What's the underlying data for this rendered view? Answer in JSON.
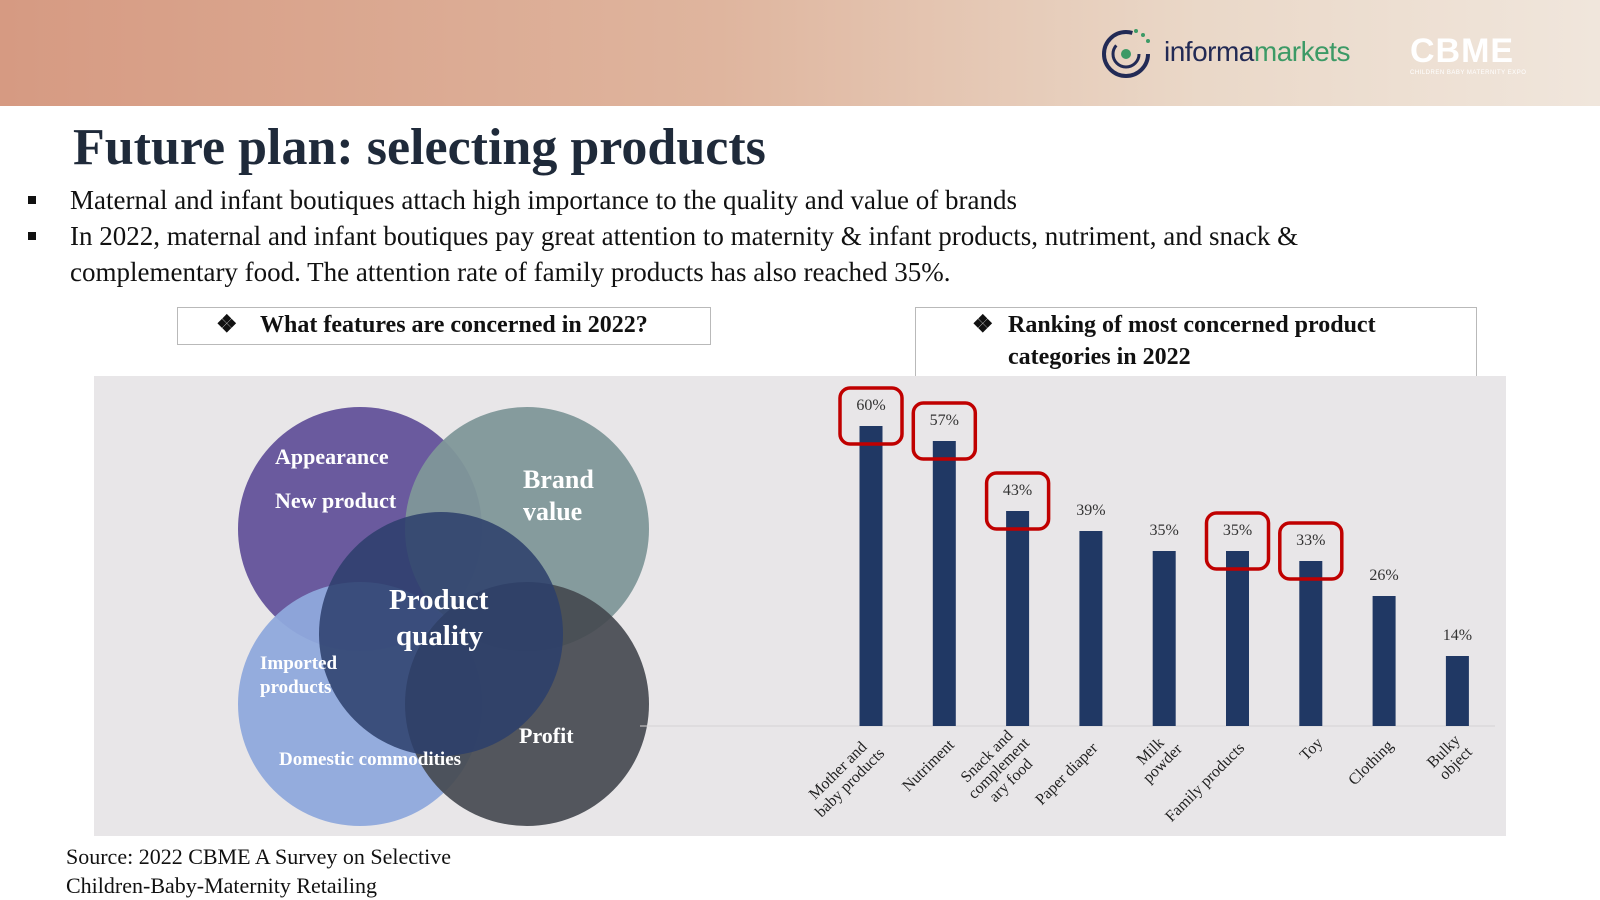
{
  "header": {
    "brand_primary": "informa",
    "brand_secondary": "markets",
    "event_logo": "CBME",
    "event_logo_sub": "CHILDREN BABY MATERNITY EXPO"
  },
  "title": "Future plan: selecting products",
  "bullets": [
    "Maternal and infant boutiques attach high importance to the quality and value of brands",
    "In 2022, maternal and infant boutiques pay great attention to maternity & infant products, nutriment, and snack & complementary food. The attention rate of family products has also reached 35%."
  ],
  "left_box_title": "What features are concerned in 2022?",
  "right_box_title_line1": "Ranking of most concerned product",
  "right_box_title_line2": "categories in 2022",
  "venn": {
    "appearance": "Appearance",
    "new_product": "New product",
    "brand_value_1": "Brand",
    "brand_value_2": "value",
    "product_quality_1": "Product",
    "product_quality_2": "quality",
    "imported_1": "Imported",
    "imported_2": "products",
    "domestic": "Domestic commodities",
    "profit": "Profit"
  },
  "source_line1": "Source: 2022 CBME A Survey on Selective",
  "source_line2": "Children-Baby-Maternity Retailing",
  "colors": {
    "bar": "#203864",
    "highlight": "#c00000",
    "panel_bg": "#e8e6e8",
    "circle_purple": "#6a5a9e",
    "circle_teal": "#7f9799",
    "circle_blue": "#8fa9dc",
    "circle_dark": "#454a50",
    "circle_navy": "#2b3e6b"
  },
  "chart_data": {
    "type": "bar",
    "categories": [
      [
        "Mother and",
        "baby products"
      ],
      [
        "Nutriment"
      ],
      [
        "Snack and",
        "complement",
        "ary food"
      ],
      [
        "Paper diaper"
      ],
      [
        "Milk",
        "powder"
      ],
      [
        "Family products"
      ],
      [
        "Toy"
      ],
      [
        "Clothing"
      ],
      [
        "Bulky",
        "object"
      ]
    ],
    "values": [
      60,
      57,
      43,
      39,
      35,
      35,
      33,
      26,
      14
    ],
    "data_labels": [
      "60%",
      "57%",
      "43%",
      "39%",
      "35%",
      "35%",
      "33%",
      "26%",
      "14%"
    ],
    "highlighted": [
      true,
      true,
      true,
      false,
      false,
      true,
      true,
      false,
      false
    ],
    "ylim": [
      0,
      69
    ],
    "grid": false,
    "legend": "none"
  }
}
